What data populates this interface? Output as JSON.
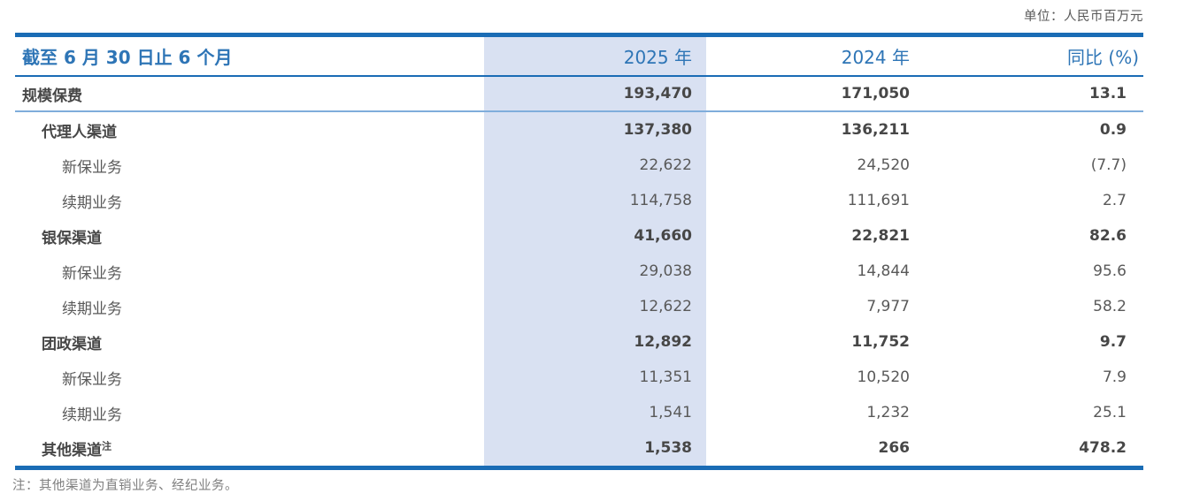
{
  "unit_label": "单位：人民币百万元",
  "table": {
    "header": {
      "period": "截至 6 月 30 日止 6 个月",
      "col_2025": "2025 年",
      "col_2024": "2024 年",
      "col_yoy": "同比 (%)"
    },
    "rows": [
      {
        "label": "规模保费",
        "indent": 0,
        "bold": true,
        "separator_below": true,
        "v2025": "193,470",
        "v2024": "171,050",
        "yoy": "13.1"
      },
      {
        "label": "代理人渠道",
        "indent": 1,
        "bold": true,
        "separator_below": false,
        "v2025": "137,380",
        "v2024": "136,211",
        "yoy": "0.9"
      },
      {
        "label": "新保业务",
        "indent": 2,
        "bold": false,
        "separator_below": false,
        "v2025": "22,622",
        "v2024": "24,520",
        "yoy": "(7.7)"
      },
      {
        "label": "续期业务",
        "indent": 2,
        "bold": false,
        "separator_below": false,
        "v2025": "114,758",
        "v2024": "111,691",
        "yoy": "2.7"
      },
      {
        "label": "银保渠道",
        "indent": 1,
        "bold": true,
        "separator_below": false,
        "v2025": "41,660",
        "v2024": "22,821",
        "yoy": "82.6"
      },
      {
        "label": "新保业务",
        "indent": 2,
        "bold": false,
        "separator_below": false,
        "v2025": "29,038",
        "v2024": "14,844",
        "yoy": "95.6"
      },
      {
        "label": "续期业务",
        "indent": 2,
        "bold": false,
        "separator_below": false,
        "v2025": "12,622",
        "v2024": "7,977",
        "yoy": "58.2"
      },
      {
        "label": "团政渠道",
        "indent": 1,
        "bold": true,
        "separator_below": false,
        "v2025": "12,892",
        "v2024": "11,752",
        "yoy": "9.7"
      },
      {
        "label": "新保业务",
        "indent": 2,
        "bold": false,
        "separator_below": false,
        "v2025": "11,351",
        "v2024": "10,520",
        "yoy": "7.9"
      },
      {
        "label": "续期业务",
        "indent": 2,
        "bold": false,
        "separator_below": false,
        "v2025": "1,541",
        "v2024": "1,232",
        "yoy": "25.1"
      },
      {
        "label": "其他渠道",
        "label_sup": "注",
        "indent": 1,
        "bold": true,
        "separator_below": false,
        "v2025": "1,538",
        "v2024": "266",
        "yoy": "478.2"
      }
    ]
  },
  "footnote": "注：其他渠道为直销业务、经纪业务。",
  "colors": {
    "line_blue": "#1A6CB5",
    "header_text_blue": "#2E75B6",
    "column_highlight": "#D9E1F2",
    "row_separator_blue": "#7FADDB",
    "bold_text": "#474747",
    "body_text": "#595959",
    "note_text": "#808080"
  }
}
